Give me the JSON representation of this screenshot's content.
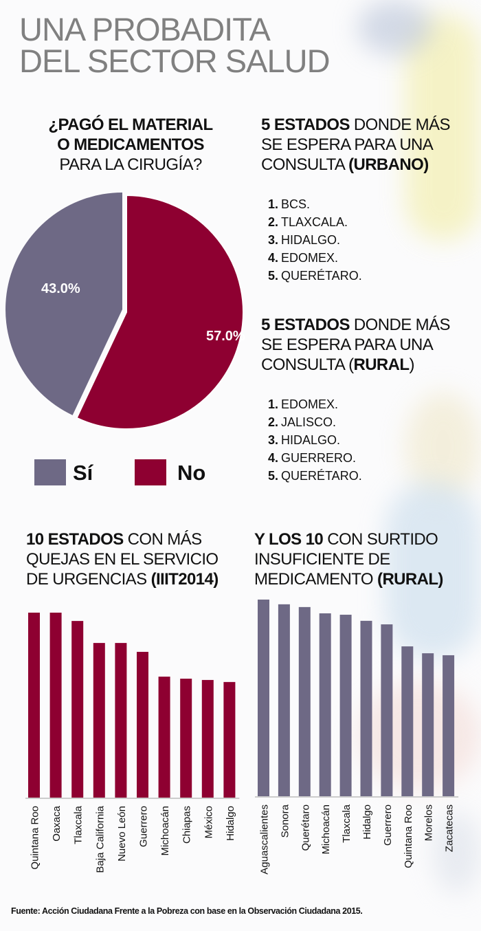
{
  "title": {
    "line1": "UNA PROBADITA",
    "line2": "DEL SECTOR SALUD"
  },
  "colors": {
    "purple": "#6e6985",
    "red": "#8e0031",
    "title_gray": "#808080"
  },
  "pie_section": {
    "heading_bold_1": "¿PAGÓ EL MATERIAL",
    "heading_bold_2": "O MEDICAMENTOS",
    "heading_regular": "PARA LA CIRUGÍA?",
    "legend": [
      {
        "label": "Sí",
        "color": "#6e6985"
      },
      {
        "label": "No",
        "color": "#8e0031"
      }
    ]
  },
  "urban": {
    "heading_bold": "5 ESTADOS",
    "heading_rest_1": " DONDE MÁS",
    "heading_line2": "SE ESPERA PARA UNA",
    "heading_line3_regular": "CONSULTA ",
    "heading_line3_bold": "(URBANO)",
    "items": [
      {
        "num": "1.",
        "label": "BCS."
      },
      {
        "num": "2.",
        "label": "TLAXCALA."
      },
      {
        "num": "3.",
        "label": "HIDALGO."
      },
      {
        "num": "4.",
        "label": "EDOMEX."
      },
      {
        "num": "5.",
        "label": "QUERÉTARO."
      }
    ]
  },
  "rural": {
    "heading_bold": "5 ESTADOS",
    "heading_rest_1": " DONDE MÁS",
    "heading_line2": "SE ESPERA PARA UNA",
    "heading_line3_regular": "CONSULTA (",
    "heading_line3_bold": "RURAL",
    "heading_line3_end": ")",
    "items": [
      {
        "num": "1.",
        "label": "EDOMEX."
      },
      {
        "num": "2.",
        "label": "JALISCO."
      },
      {
        "num": "3.",
        "label": "HIDALGO."
      },
      {
        "num": "4.",
        "label": "GUERRERO."
      },
      {
        "num": "5.",
        "label": "QUERÉTARO."
      }
    ]
  },
  "complaints": {
    "heading_bold": "10 ESTADOS",
    "heading_rest_1": " CON MÁS",
    "heading_line2": "QUEJAS EN EL SERVICIO",
    "heading_line3_regular": "DE URGENCIAS ",
    "heading_line3_bold": "(IIIT2014)"
  },
  "shortage": {
    "heading_bold": "Y LOS 10",
    "heading_rest_1": " CON SURTIDO",
    "heading_line2": "INSUFICIENTE DE",
    "heading_line3_regular": "MEDICAMENTO ",
    "heading_line3_bold": "(RURAL)"
  },
  "chart_data": [
    {
      "type": "pie",
      "categories": [
        "Sí",
        "No"
      ],
      "values": [
        43.0,
        57.0
      ],
      "labels": [
        "43.0%",
        "57.0%"
      ],
      "colors": [
        "#6e6985",
        "#8e0031"
      ],
      "legend": "bottom"
    },
    {
      "type": "bar",
      "categories": [
        "Quintana Roo",
        "Oaxaca",
        "Tlaxcala",
        "Baja California",
        "Nuevo León",
        "Guerrero",
        "Michoacán",
        "Chiapas",
        "México",
        "Hidalgo"
      ],
      "values": [
        100,
        100,
        95.5,
        83.6,
        83.6,
        78.8,
        65.4,
        64.3,
        63.6,
        62.5
      ],
      "color": "#8e0031",
      "grid": false
    },
    {
      "type": "bar",
      "categories": [
        "Aguascalientes",
        "Sonora",
        "Querétaro",
        "Michoacán",
        "Tlaxcala",
        "Hidalgo",
        "Guerrero",
        "Quintana Roo",
        "Morelos",
        "Zacatecas"
      ],
      "values": [
        100,
        97.6,
        96.2,
        93.0,
        92.3,
        89.2,
        87.4,
        76.2,
        72.7,
        71.7
      ],
      "color": "#6e6985",
      "grid": false
    }
  ],
  "footer": "Fuente: Acción Ciudadana Frente a la Pobreza con base en la Observación Ciudadana 2015."
}
